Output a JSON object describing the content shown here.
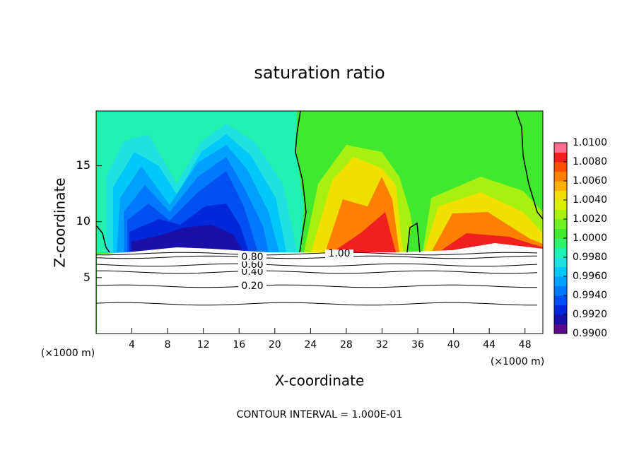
{
  "chart_data": {
    "type": "contour",
    "title": "saturation ratio",
    "xlabel": "X-coordinate",
    "ylabel": "Z-coordinate",
    "x_unit": "(×1000 m)",
    "footer": "CONTOUR INTERVAL = 1.000E-01",
    "xlim": [
      0,
      50
    ],
    "xticks": [
      4,
      8,
      12,
      16,
      20,
      24,
      28,
      32,
      36,
      40,
      44,
      48
    ],
    "ylim": [
      0,
      19.9
    ],
    "yticks": [
      5,
      10,
      15
    ],
    "contours": [
      {
        "value": 0.2,
        "label": "0.20"
      },
      {
        "value": 0.4,
        "label": "0.40"
      },
      {
        "value": 0.6,
        "label": "0.60"
      },
      {
        "value": 0.8,
        "label": "0.80"
      },
      {
        "value": 1.0,
        "label": "1.00"
      }
    ],
    "colorbar": {
      "lim": [
        0.99,
        1.01
      ],
      "ticks": [
        {
          "value": 0.99,
          "label": "0.9900"
        },
        {
          "value": 0.992,
          "label": "0.9920"
        },
        {
          "value": 0.994,
          "label": "0.9940"
        },
        {
          "value": 0.996,
          "label": "0.9960"
        },
        {
          "value": 0.998,
          "label": "0.9980"
        },
        {
          "value": 1.0,
          "label": "1.0000"
        },
        {
          "value": 1.002,
          "label": "1.0020"
        },
        {
          "value": 1.004,
          "label": "1.0040"
        },
        {
          "value": 1.006,
          "label": "1.0060"
        },
        {
          "value": 1.008,
          "label": "1.0080"
        },
        {
          "value": 1.01,
          "label": "1.0100"
        }
      ],
      "colors": [
        "#5a0a8c",
        "#1a10a8",
        "#0028d8",
        "#0050f0",
        "#0078ff",
        "#00a0ff",
        "#00c8f8",
        "#20e0e0",
        "#20f0b0",
        "#30f070",
        "#40e830",
        "#70f020",
        "#a8f010",
        "#d8f000",
        "#f0e000",
        "#ffb000",
        "#ff8000",
        "#ff5000",
        "#f02020",
        "#ff7090"
      ]
    }
  }
}
